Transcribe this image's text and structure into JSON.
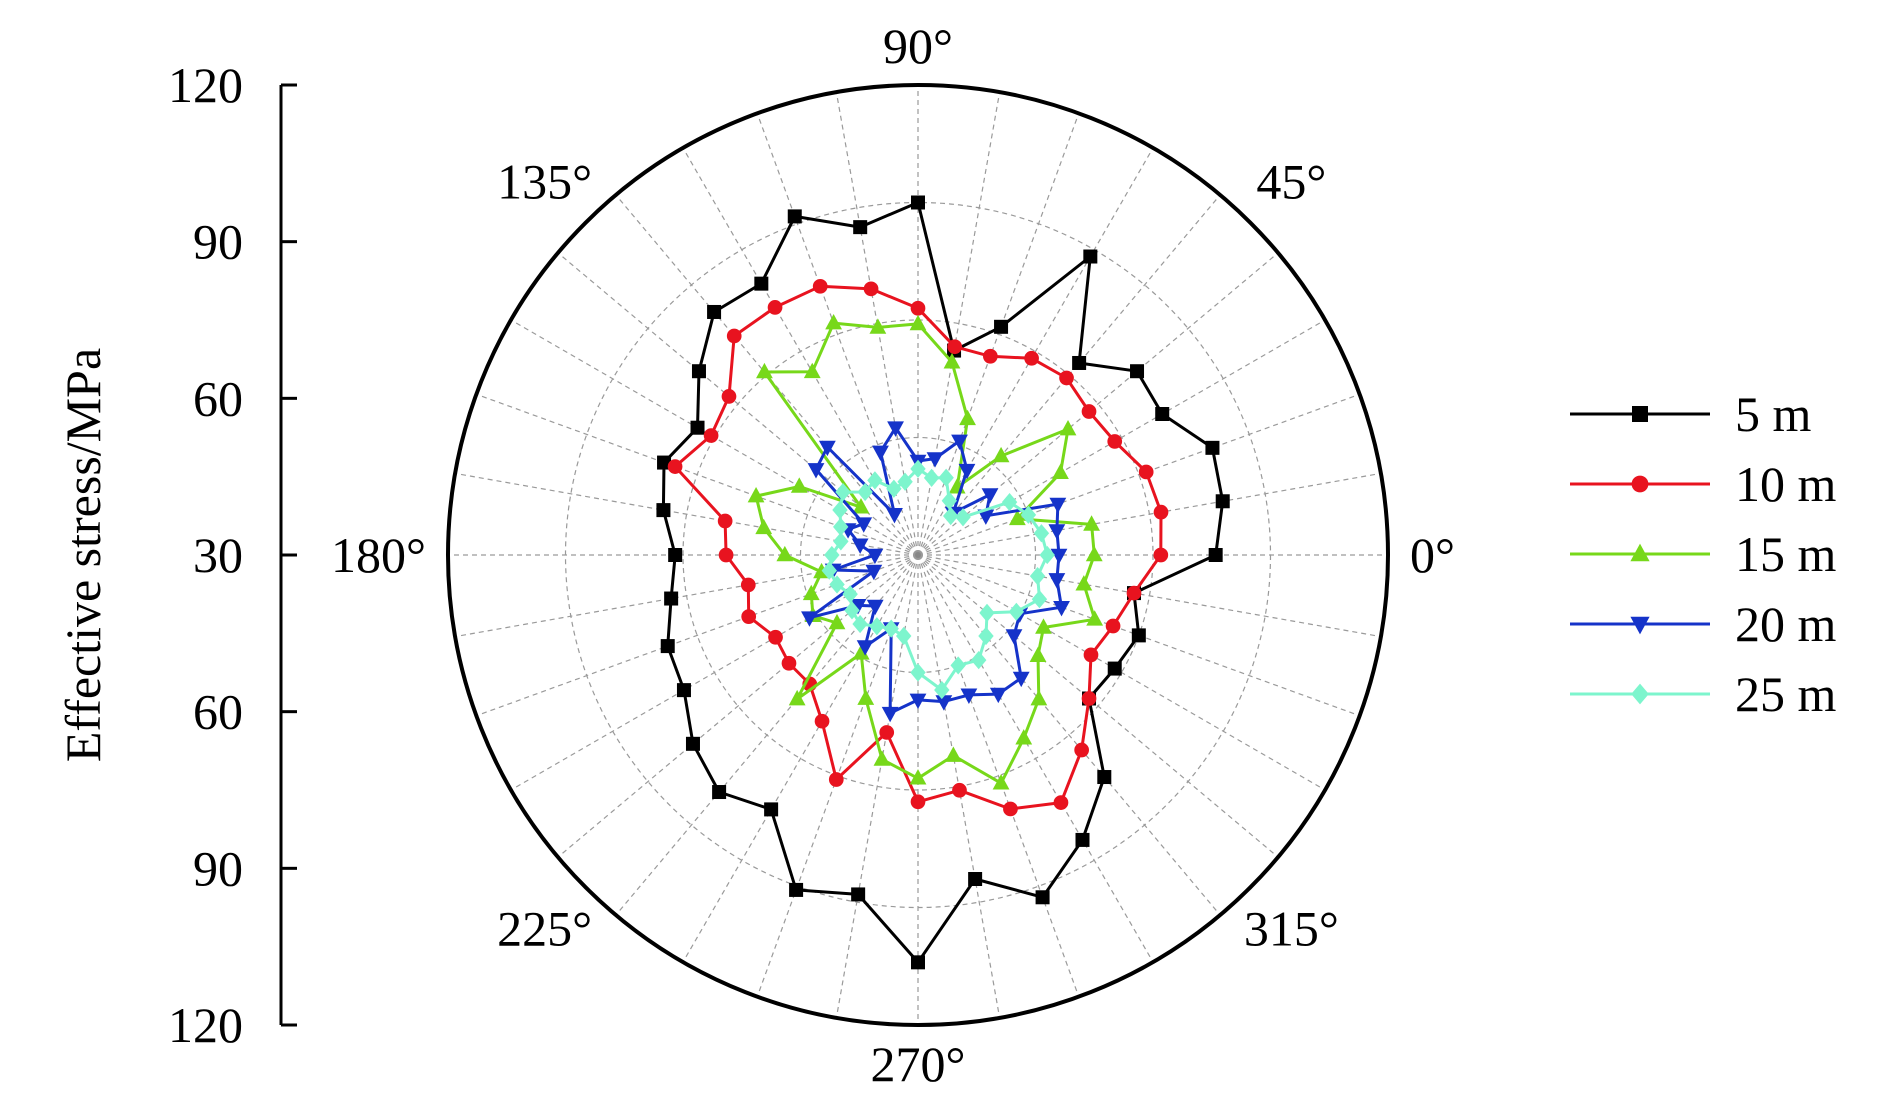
{
  "chart_data": {
    "type": "polar-line",
    "ylabel": "Effective stress/MPa",
    "radial_range": [
      0,
      120
    ],
    "radial_ticks": [
      "120",
      "90",
      "60",
      "30",
      "60",
      "90",
      "120"
    ],
    "angle_labels": [
      "0°",
      "45°",
      "90°",
      "135°",
      "180°",
      "225°",
      "270°",
      "315°"
    ],
    "angle_step_deg": 10,
    "angles_deg": [
      0,
      10,
      20,
      30,
      40,
      50,
      60,
      70,
      80,
      90,
      100,
      110,
      120,
      130,
      140,
      150,
      160,
      170,
      180,
      190,
      200,
      210,
      220,
      230,
      240,
      250,
      260,
      270,
      280,
      290,
      300,
      310,
      320,
      330,
      340,
      350
    ],
    "grid": true,
    "legend_position": "right",
    "series": [
      {
        "name": "5 m",
        "color": "#000000",
        "marker": "square",
        "values": [
          76,
          79,
          80,
          72,
          73,
          64,
          88,
          62,
          53,
          90,
          85,
          92,
          80,
          81,
          73,
          65,
          69,
          66,
          62,
          64,
          68,
          69,
          75,
          79,
          75,
          91,
          88,
          104,
          84,
          93,
          84,
          74,
          57,
          58,
          60,
          56
        ]
      },
      {
        "name": "10 m",
        "color": "#e8131f",
        "marker": "circle",
        "values": [
          62,
          63,
          62,
          58,
          57,
          59,
          58,
          54,
          54,
          63,
          69,
          73,
          73,
          73,
          63,
          61,
          66,
          50,
          49,
          44,
          46,
          42,
          43,
          43,
          49,
          61,
          46,
          63,
          61,
          69,
          73,
          65,
          57,
          51,
          53,
          56
        ]
      },
      {
        "name": "15 m",
        "color": "#77d81a",
        "marker": "triangle-up",
        "values": [
          45,
          45,
          27,
          42,
          50,
          33,
          20,
          37,
          50,
          59,
          59,
          63,
          54,
          61,
          19,
          35,
          44,
          40,
          34,
          25,
          29,
          31,
          27,
          48,
          29,
          39,
          53,
          57,
          52,
          62,
          54,
          48,
          40,
          37,
          48,
          43
        ]
      },
      {
        "name": "20 m",
        "color": "#1533c9",
        "marker": "triangle-down",
        "values": [
          36,
          36,
          38,
          20,
          24,
          14,
          25,
          31,
          25,
          24,
          33,
          28,
          12,
          36,
          34,
          16,
          19,
          15,
          11,
          22,
          12,
          32,
          20,
          17,
          27,
          20,
          41,
          37,
          38,
          38,
          41,
          41,
          32,
          30,
          39,
          36
        ]
      },
      {
        "name": "25 m",
        "color": "#7df5cd",
        "marker": "diamond",
        "values": [
          33,
          32,
          30,
          27,
          15,
          13,
          16,
          21,
          20,
          22,
          19,
          18,
          22,
          21,
          25,
          23,
          21,
          20,
          22,
          23,
          22,
          20,
          22,
          23,
          21,
          20,
          21,
          30,
          35,
          30,
          31,
          27,
          23,
          29,
          33,
          31
        ]
      }
    ]
  }
}
